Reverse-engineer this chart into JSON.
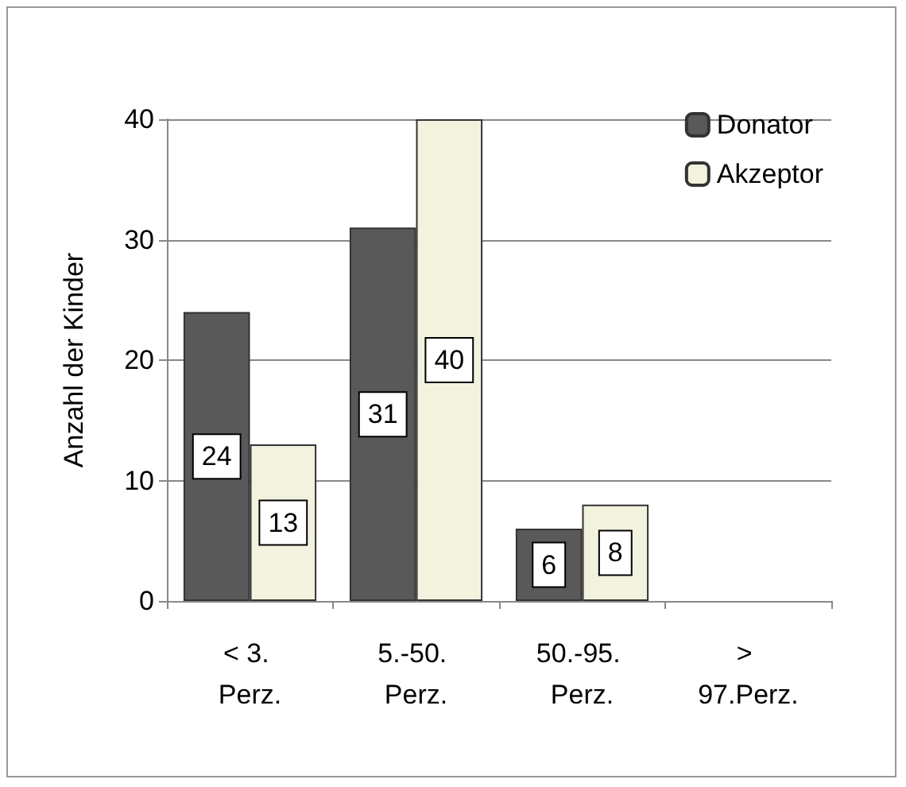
{
  "chart_data": {
    "type": "bar",
    "ylabel": "Anzahl der Kinder",
    "categories": [
      "< 3. Perz.",
      "5.-50. Perz.",
      "50.-95. Perz.",
      "> 97.Perz."
    ],
    "series": [
      {
        "name": "Donator",
        "color": "#595959",
        "values": [
          24,
          31,
          6,
          null
        ]
      },
      {
        "name": "Akzeptor",
        "color": "#f2f2df",
        "values": [
          13,
          40,
          8,
          null
        ]
      }
    ],
    "ylim": [
      0,
      40
    ],
    "yticks": [
      0,
      10,
      20,
      30,
      40
    ],
    "grid": "y",
    "legend": "top right",
    "data_labels": true
  }
}
